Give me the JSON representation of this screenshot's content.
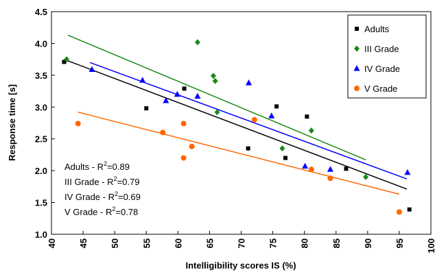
{
  "chart_data": {
    "type": "scatter",
    "xlabel": "Intelligibility scores IS (%)",
    "ylabel": "Response time [s]",
    "xlim": [
      40,
      100
    ],
    "ylim": [
      1.0,
      4.5
    ],
    "x_ticks": [
      "40",
      "45",
      "50",
      "55",
      "60",
      "65",
      "70",
      "75",
      "80",
      "85",
      "90",
      "95",
      "100"
    ],
    "y_ticks": [
      "1.0",
      "1.5",
      "2.0",
      "2.5",
      "3.0",
      "3.5",
      "4.0",
      "4.5"
    ],
    "grid": false,
    "legend": "top-right",
    "series": [
      {
        "name": "Adults",
        "marker": "square",
        "color": "#000000",
        "points": [
          [
            42,
            3.71
          ],
          [
            55,
            2.98
          ],
          [
            61,
            3.29
          ],
          [
            71.1,
            2.35
          ],
          [
            75.6,
            3.01
          ],
          [
            77,
            2.2
          ],
          [
            80.4,
            2.85
          ],
          [
            86.6,
            2.03
          ],
          [
            96.6,
            1.39
          ]
        ],
        "trend": [
          [
            42,
            3.75
          ],
          [
            96.2,
            1.71
          ]
        ]
      },
      {
        "name": "III Grade",
        "marker": "diamond",
        "color": "#1a8a1a",
        "points": [
          [
            42.4,
            3.75
          ],
          [
            63.1,
            4.02
          ],
          [
            65.6,
            3.49
          ],
          [
            65.9,
            3.41
          ],
          [
            66.2,
            2.92
          ],
          [
            76.5,
            2.35
          ],
          [
            81.1,
            2.63
          ],
          [
            89.7,
            1.9
          ]
        ],
        "trend": [
          [
            42.6,
            4.13
          ],
          [
            89.7,
            2.17
          ]
        ]
      },
      {
        "name": "IV Grade",
        "marker": "triangle",
        "color": "#0000ff",
        "points": [
          [
            46.4,
            3.59
          ],
          [
            54.4,
            3.42
          ],
          [
            58.1,
            3.1
          ],
          [
            59.9,
            3.2
          ],
          [
            63.1,
            3.17
          ],
          [
            71.2,
            3.38
          ],
          [
            74.8,
            2.86
          ],
          [
            80.1,
            2.07
          ],
          [
            84.1,
            2.02
          ],
          [
            96.3,
            1.97
          ]
        ],
        "trend": [
          [
            46.1,
            3.7
          ],
          [
            96.2,
            1.87
          ]
        ]
      },
      {
        "name": "V Grade",
        "marker": "circle",
        "color": "#ff6600",
        "points": [
          [
            44.2,
            2.74
          ],
          [
            57.6,
            2.6
          ],
          [
            60.9,
            2.74
          ],
          [
            60.9,
            2.2
          ],
          [
            62.2,
            2.38
          ],
          [
            72.1,
            2.8
          ],
          [
            81.1,
            2.02
          ],
          [
            84.1,
            1.88
          ],
          [
            95,
            1.35
          ]
        ],
        "trend": [
          [
            44.2,
            2.92
          ],
          [
            95,
            1.63
          ]
        ]
      }
    ],
    "annotations": [
      {
        "prefix": "Adults - R",
        "sup": "2",
        "suffix": "=0.89"
      },
      {
        "prefix": "III Grade - R",
        "sup": "2",
        "suffix": "=0.79"
      },
      {
        "prefix": "IV Grade - R",
        "sup": "2",
        "suffix": "=0.69"
      },
      {
        "prefix": "V  Grade - R",
        "sup": "2",
        "suffix": "=0.78"
      }
    ]
  }
}
